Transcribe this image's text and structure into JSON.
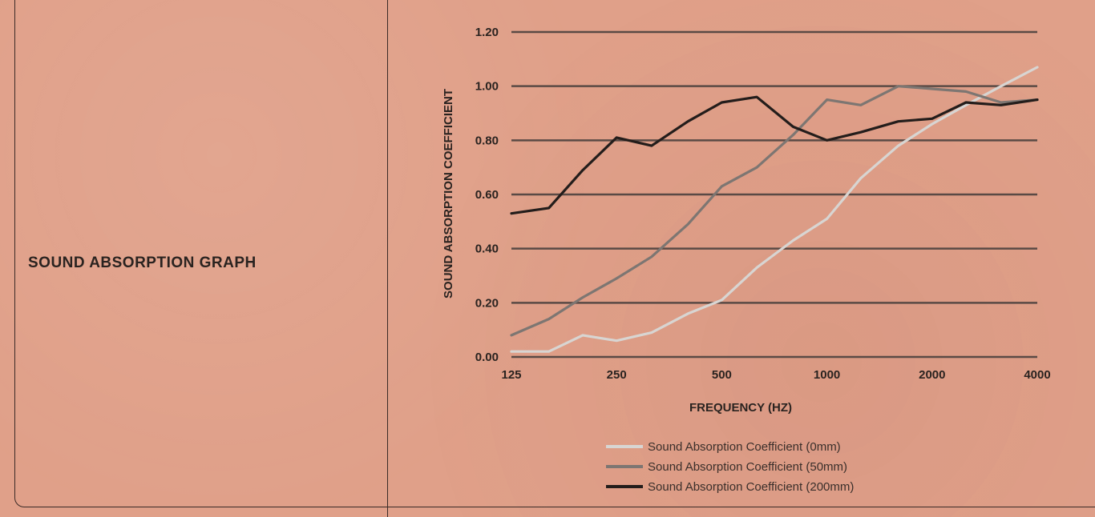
{
  "panel": {
    "title": "SOUND ABSORPTION GRAPH"
  },
  "chart_data": {
    "type": "line",
    "x_scale": "log2",
    "xlabel": "FREQUENCY (HZ)",
    "ylabel": "SOUND ABSORPTION COEFFICIENT",
    "ylim": [
      0,
      1.2
    ],
    "xlim": [
      125,
      4000
    ],
    "y_ticks": [
      "0.00",
      "0.20",
      "0.40",
      "0.60",
      "0.80",
      "1.00",
      "1.20"
    ],
    "x_ticks": [
      {
        "value": 125,
        "label": "125"
      },
      {
        "value": 250,
        "label": "250"
      },
      {
        "value": 500,
        "label": "500"
      },
      {
        "value": 1000,
        "label": "1000"
      },
      {
        "value": 2000,
        "label": "2000"
      },
      {
        "value": 4000,
        "label": "4000"
      }
    ],
    "grid": true,
    "legend_position": "bottom",
    "x": [
      125,
      160,
      200,
      250,
      315,
      400,
      500,
      630,
      800,
      1000,
      1250,
      1600,
      2000,
      2500,
      3150,
      4000
    ],
    "series": [
      {
        "name": "Sound Absorption Coefficient (0mm)",
        "color": "#d8d5d2",
        "values": [
          0.02,
          0.02,
          0.08,
          0.06,
          0.09,
          0.16,
          0.21,
          0.33,
          0.43,
          0.51,
          0.66,
          0.78,
          0.86,
          0.93,
          1.0,
          1.07
        ]
      },
      {
        "name": "Sound Absorption Coefficient (50mm)",
        "color": "#7d7672",
        "values": [
          0.08,
          0.14,
          0.22,
          0.29,
          0.37,
          0.49,
          0.63,
          0.7,
          0.82,
          0.95,
          0.93,
          1.0,
          0.99,
          0.98,
          0.94,
          0.95
        ]
      },
      {
        "name": "Sound Absorption Coefficient (200mm)",
        "color": "#231d1b",
        "values": [
          0.53,
          0.55,
          0.69,
          0.81,
          0.78,
          0.87,
          0.94,
          0.96,
          0.85,
          0.8,
          0.83,
          0.87,
          0.88,
          0.94,
          0.93,
          0.95
        ]
      }
    ]
  }
}
